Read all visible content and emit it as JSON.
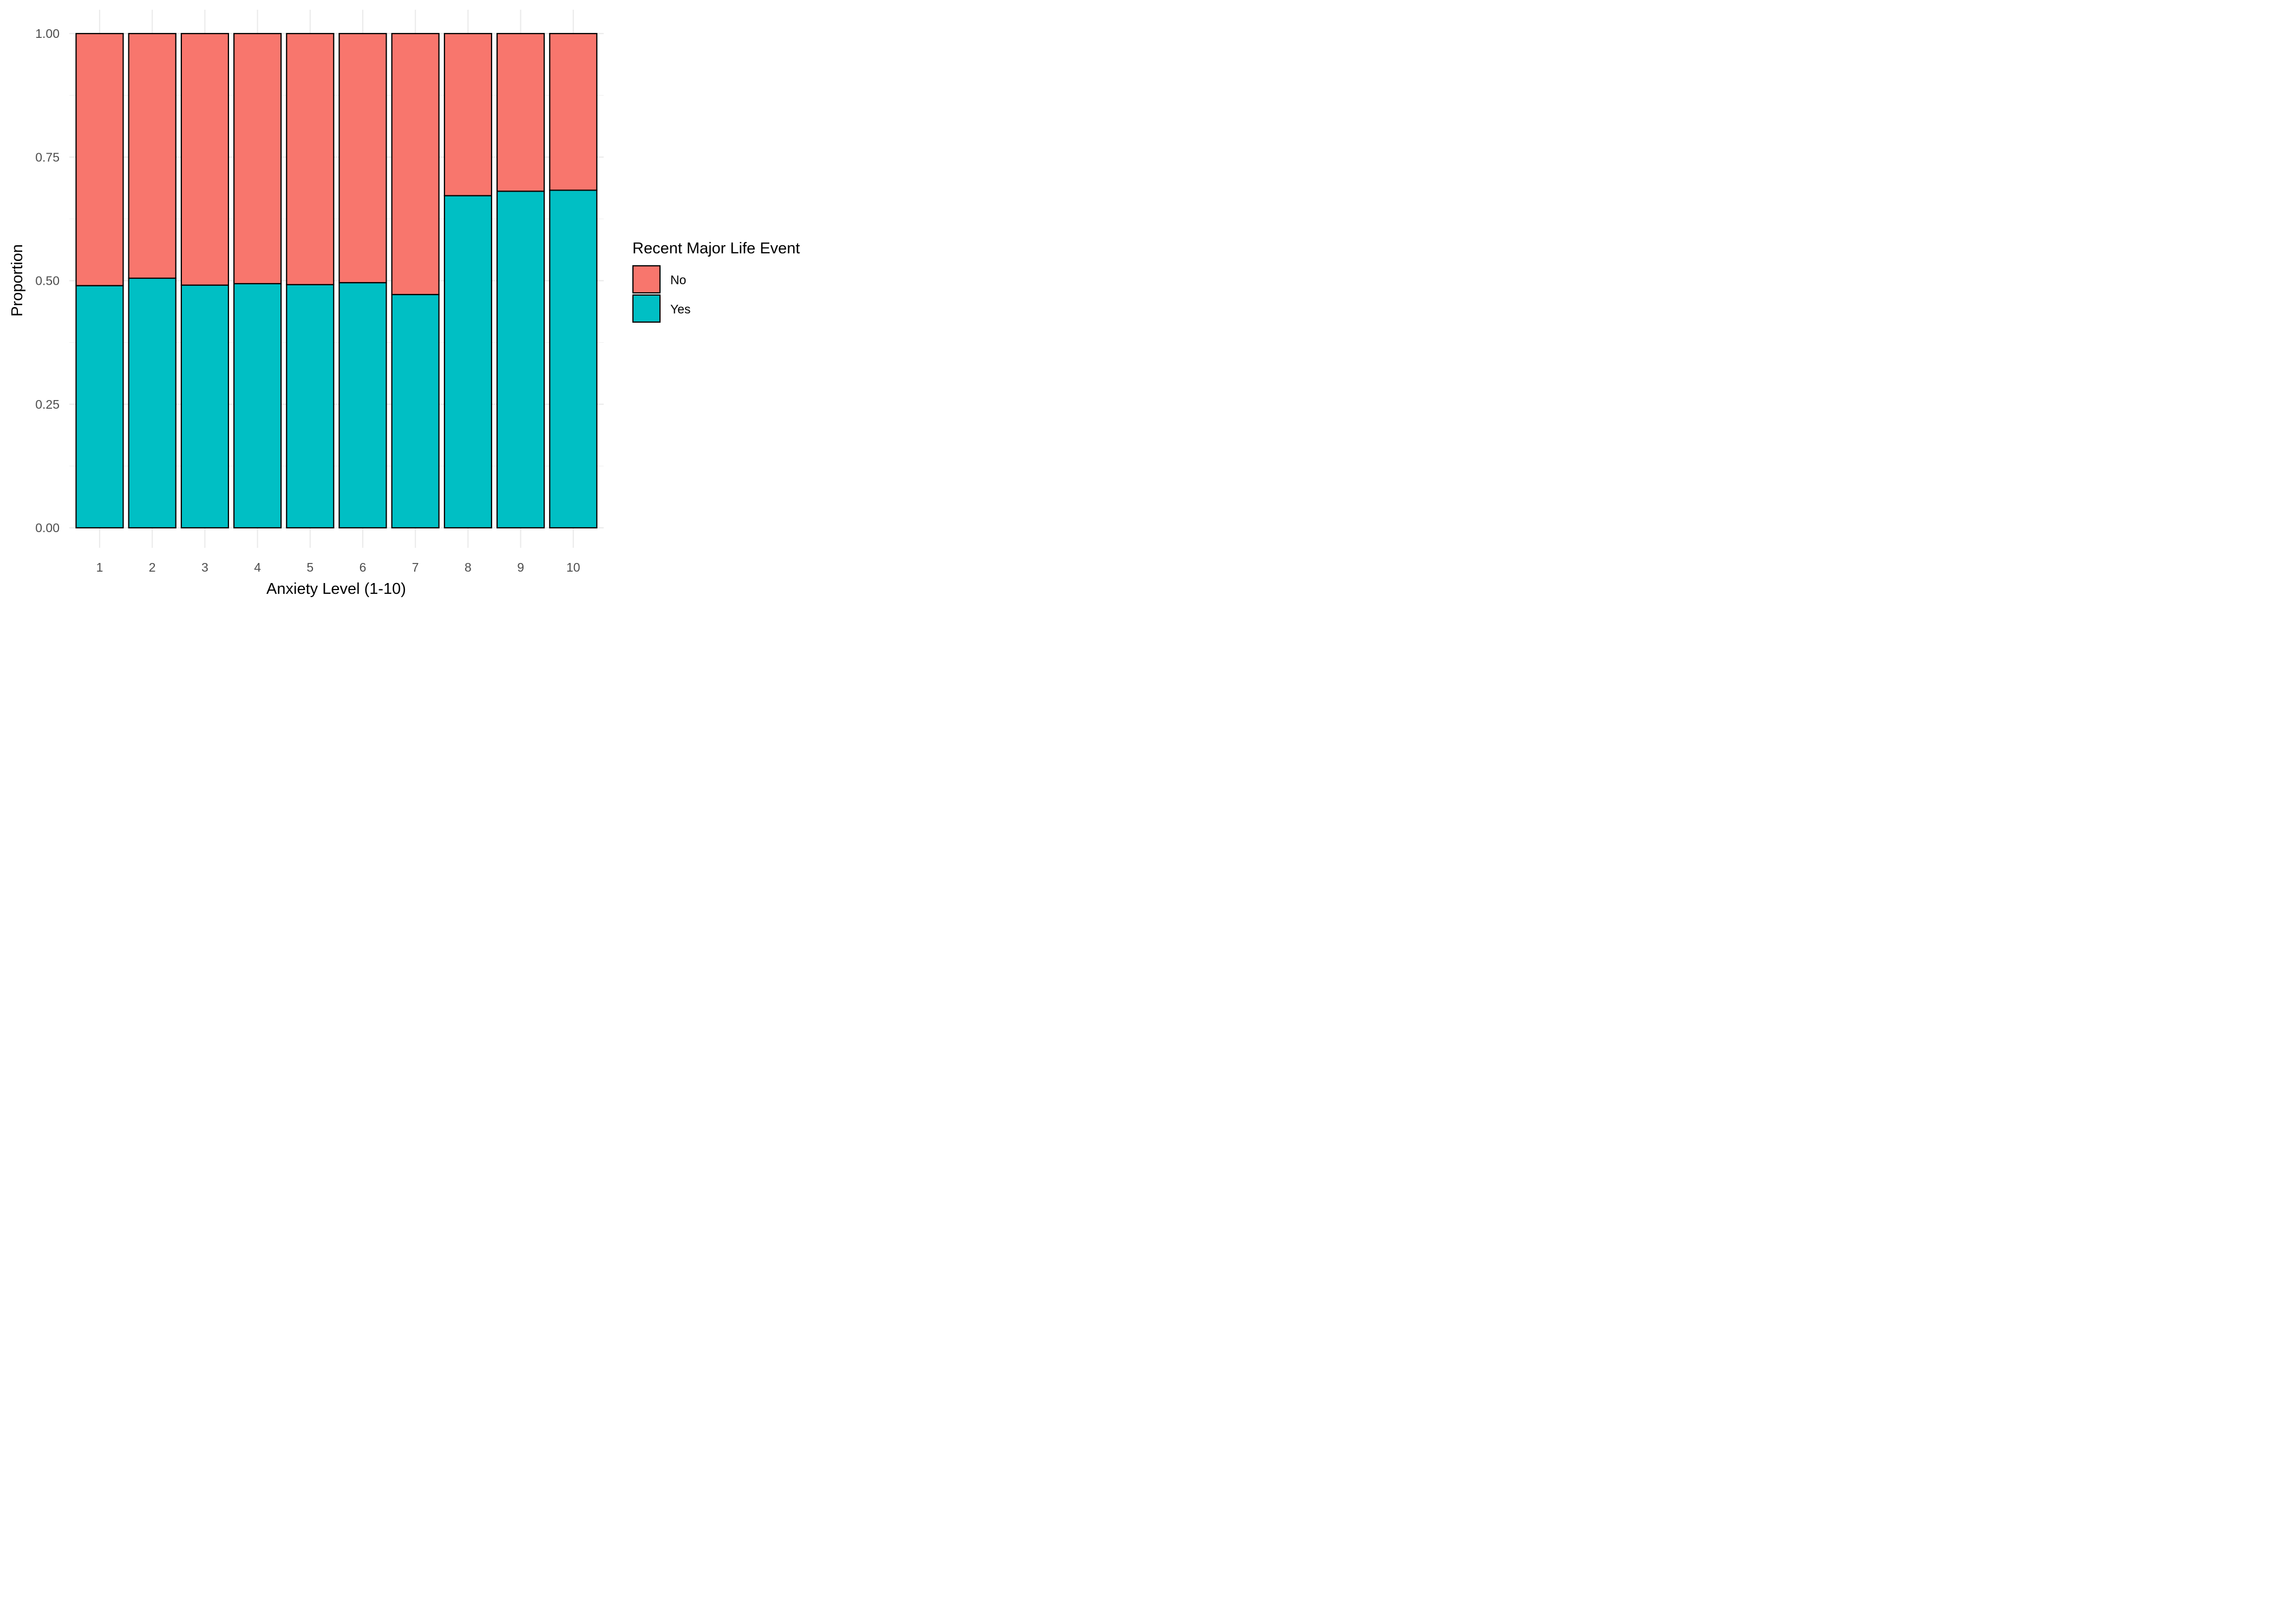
{
  "chart_data": {
    "type": "bar",
    "stacked": true,
    "position": "fill",
    "xlabel": "Anxiety Level (1-10)",
    "ylabel": "Proportion",
    "categories": [
      "1",
      "2",
      "3",
      "4",
      "5",
      "6",
      "7",
      "8",
      "9",
      "10"
    ],
    "ylim": [
      0,
      1
    ],
    "y_ticks": [
      "0.00",
      "0.25",
      "0.50",
      "0.75",
      "1.00"
    ],
    "grid": true,
    "series": [
      {
        "name": "Yes",
        "color": "#00BFC4",
        "values": [
          0.49,
          0.505,
          0.491,
          0.494,
          0.492,
          0.496,
          0.472,
          0.672,
          0.681,
          0.683
        ]
      },
      {
        "name": "No",
        "color": "#F8766D",
        "values": [
          0.51,
          0.495,
          0.509,
          0.506,
          0.508,
          0.504,
          0.528,
          0.328,
          0.319,
          0.317
        ]
      }
    ],
    "legend": {
      "title": "Recent Major Life Event",
      "placement": "right",
      "entries": [
        {
          "label": "No",
          "color": "#F8766D"
        },
        {
          "label": "Yes",
          "color": "#00BFC4"
        }
      ]
    }
  }
}
